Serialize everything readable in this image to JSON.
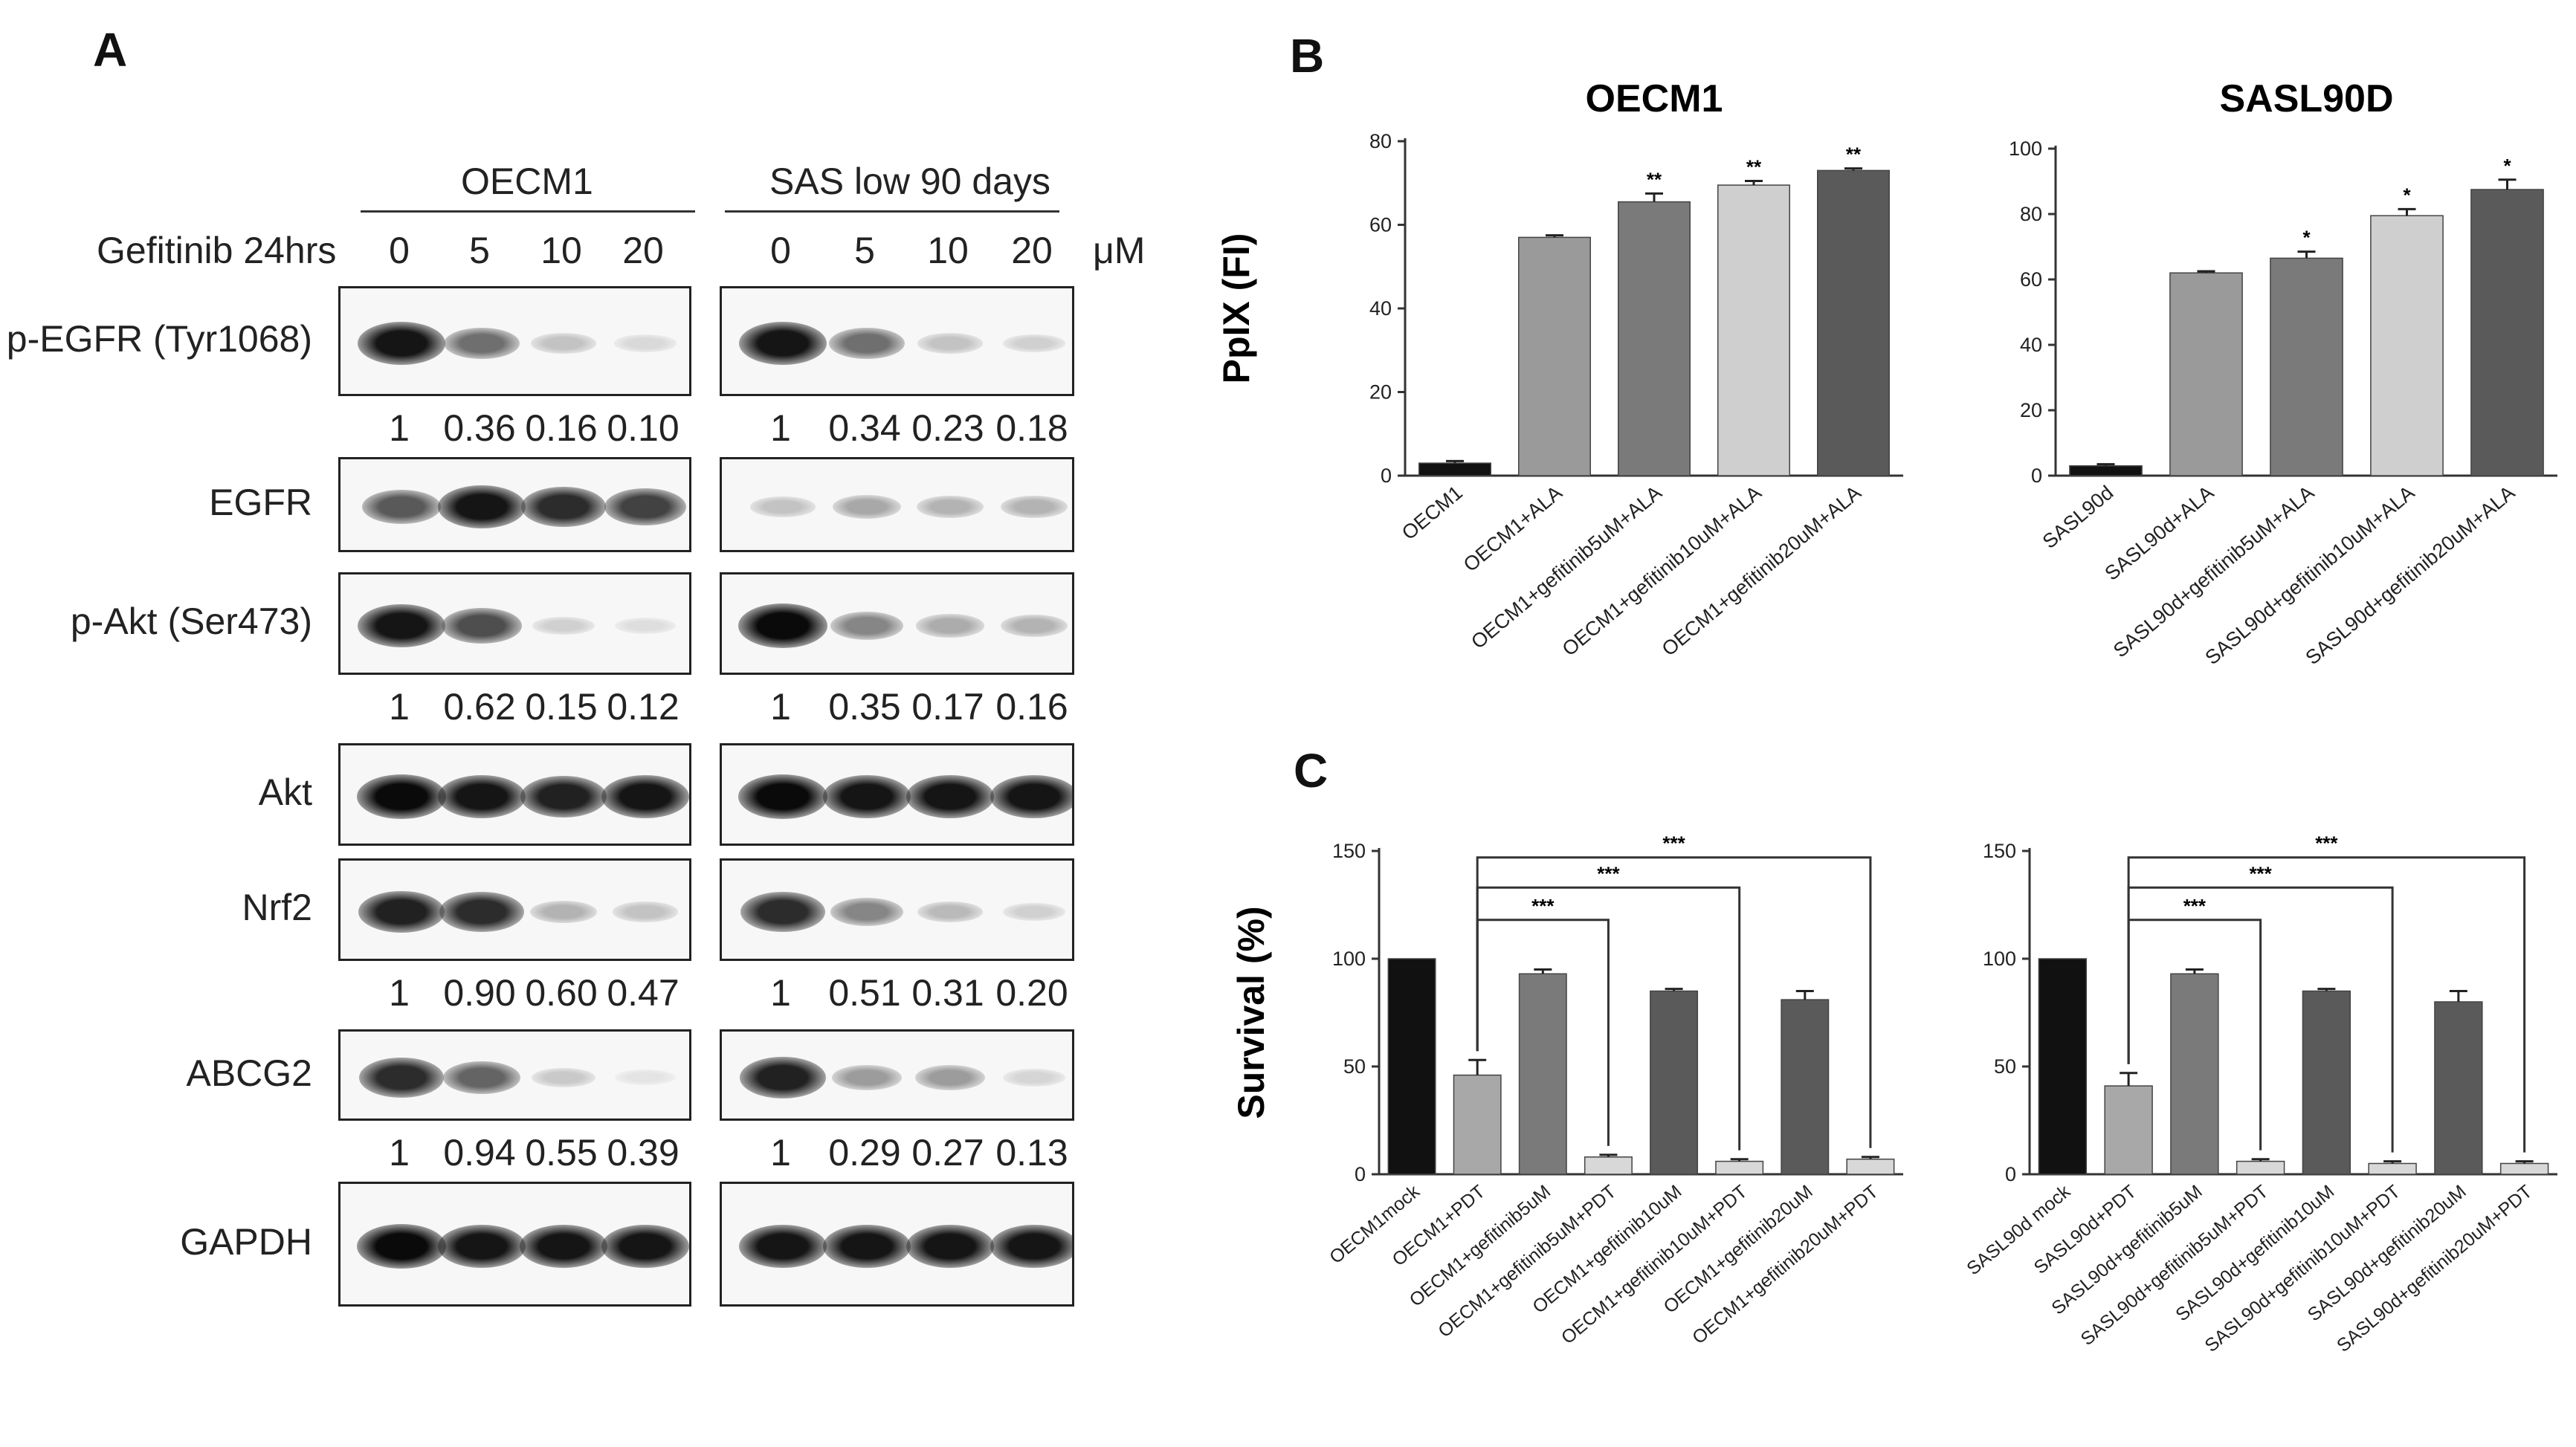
{
  "panels": {
    "A": "A",
    "B": "B",
    "C": "C"
  },
  "blot": {
    "group_left": "OECM1",
    "group_right": "SAS low 90 days",
    "treatment_label": "Gefitinib 24hrs",
    "unit": "μM",
    "lanes": [
      "0",
      "5",
      "10",
      "20"
    ],
    "rows": [
      {
        "label": "p-EGFR (Tyr1068)",
        "left_quant": [
          "1",
          "0.36",
          "0.16",
          "0.10"
        ],
        "right_quant": [
          "1",
          "0.34",
          "0.23",
          "0.18"
        ],
        "left_intensity": [
          0.95,
          0.55,
          0.18,
          0.08
        ],
        "right_intensity": [
          0.95,
          0.55,
          0.18,
          0.12
        ]
      },
      {
        "label": "EGFR",
        "left_quant": [],
        "right_quant": [],
        "left_intensity": [
          0.65,
          0.95,
          0.85,
          0.75
        ],
        "right_intensity": [
          0.18,
          0.3,
          0.25,
          0.25
        ]
      },
      {
        "label": "p-Akt (Ser473)",
        "left_quant": [
          "1",
          "0.62",
          "0.15",
          "0.12"
        ],
        "right_quant": [
          "1",
          "0.35",
          "0.17",
          "0.16"
        ],
        "left_intensity": [
          0.95,
          0.7,
          0.12,
          0.06
        ],
        "right_intensity": [
          1.0,
          0.45,
          0.28,
          0.25
        ]
      },
      {
        "label": "Akt",
        "left_quant": [],
        "right_quant": [],
        "left_intensity": [
          1.0,
          0.95,
          0.9,
          0.95
        ],
        "right_intensity": [
          1.0,
          0.95,
          0.95,
          0.95
        ]
      },
      {
        "label": "Nrf2",
        "left_quant": [
          "1",
          "0.90",
          "0.60",
          "0.47"
        ],
        "right_quant": [
          "1",
          "0.51",
          "0.31",
          "0.20"
        ],
        "left_intensity": [
          0.9,
          0.85,
          0.25,
          0.18
        ],
        "right_intensity": [
          0.85,
          0.45,
          0.22,
          0.12
        ]
      },
      {
        "label": "ABCG2",
        "left_quant": [
          "1",
          "0.94",
          "0.55",
          "0.39"
        ],
        "right_quant": [
          "1",
          "0.29",
          "0.27",
          "0.13"
        ],
        "left_intensity": [
          0.85,
          0.6,
          0.15,
          0.03
        ],
        "right_intensity": [
          0.9,
          0.35,
          0.35,
          0.1
        ]
      },
      {
        "label": "GAPDH",
        "left_quant": [],
        "right_quant": [],
        "left_intensity": [
          1.0,
          0.95,
          0.95,
          0.95
        ],
        "right_intensity": [
          0.95,
          0.95,
          0.95,
          0.95
        ]
      }
    ]
  },
  "chart_data": [
    {
      "id": "B-left",
      "type": "bar",
      "title": "OECM1",
      "ylabel": "PpIX (FI)",
      "xlabel": "",
      "ylim": [
        0,
        80
      ],
      "yticks": [
        0,
        20,
        40,
        60,
        80
      ],
      "categories": [
        "OECM1",
        "OECM1+ALA",
        "OECM1+gefitinib5uM+ALA",
        "OECM1+gefitinib10uM+ALA",
        "OECM1+gefitinib20uM+ALA"
      ],
      "values": [
        3,
        57,
        65.5,
        69.5,
        73
      ],
      "errors": [
        0.5,
        0.5,
        2,
        1,
        0.5
      ],
      "annotations": [
        "",
        "",
        "**",
        "**",
        "**"
      ],
      "colors": [
        "#111111",
        "#9a9a9a",
        "#7a7a7a",
        "#cfcfcf",
        "#5a5a5a"
      ]
    },
    {
      "id": "B-right",
      "type": "bar",
      "title": "SASL90D",
      "ylabel": "",
      "xlabel": "",
      "ylim": [
        0,
        100
      ],
      "yticks": [
        0,
        20,
        40,
        60,
        80,
        100
      ],
      "categories": [
        "SASL90d",
        "SASL90d+ALA",
        "SASL90d+gefitinib5uM+ALA",
        "SASL90d+gefitinib10uM+ALA",
        "SASL90d+gefitinib20uM+ALA"
      ],
      "values": [
        3,
        62,
        66.5,
        79.5,
        87.5
      ],
      "errors": [
        0.5,
        0.5,
        2,
        2,
        3
      ],
      "annotations": [
        "",
        "",
        "*",
        "*",
        "*"
      ],
      "colors": [
        "#111111",
        "#9a9a9a",
        "#7a7a7a",
        "#cfcfcf",
        "#5a5a5a"
      ]
    },
    {
      "id": "C-left",
      "type": "bar",
      "title": "",
      "ylabel": "Survival (%)",
      "xlabel": "",
      "ylim": [
        0,
        150
      ],
      "yticks": [
        0,
        50,
        100,
        150
      ],
      "categories": [
        "OECM1mock",
        "OECM1+PDT",
        "OECM1+gefitinib5uM",
        "OECM1+gefitinib5uM+PDT",
        "OECM1+gefitinib10uM",
        "OECM1+gefitinib10uM+PDT",
        "OECM1+gefitinib20uM",
        "OECM1+gefitinib20uM+PDT"
      ],
      "values": [
        100,
        46,
        93,
        8,
        85,
        6,
        81,
        7
      ],
      "errors": [
        0,
        7,
        2,
        1,
        1,
        1,
        4,
        1
      ],
      "colors": [
        "#111111",
        "#a8a8a8",
        "#7a7a7a",
        "#d8d8d8",
        "#5a5a5a",
        "#d8d8d8",
        "#5a5a5a",
        "#d8d8d8"
      ],
      "brackets": [
        {
          "from": 1,
          "to": 3,
          "label": "***",
          "level": 118
        },
        {
          "from": 1,
          "to": 5,
          "label": "***",
          "level": 133
        },
        {
          "from": 1,
          "to": 7,
          "label": "***",
          "level": 147
        }
      ]
    },
    {
      "id": "C-right",
      "type": "bar",
      "title": "",
      "ylabel": "",
      "xlabel": "",
      "ylim": [
        0,
        150
      ],
      "yticks": [
        0,
        50,
        100,
        150
      ],
      "categories": [
        "SASL90d mock",
        "SASL90d+PDT",
        "SASL90d+gefitinib5uM",
        "SASL90d+gefitinib5uM+PDT",
        "SASL90d+gefitinib10uM",
        "SASL90d+gefitinib10uM+PDT",
        "SASL90d+gefitinib20uM",
        "SASL90d+gefitinib20uM+PDT"
      ],
      "values": [
        100,
        41,
        93,
        6,
        85,
        5,
        80,
        5
      ],
      "errors": [
        0,
        6,
        2,
        1,
        1,
        1,
        5,
        1
      ],
      "colors": [
        "#111111",
        "#a8a8a8",
        "#7a7a7a",
        "#d8d8d8",
        "#5a5a5a",
        "#d8d8d8",
        "#5a5a5a",
        "#d8d8d8"
      ],
      "brackets": [
        {
          "from": 1,
          "to": 3,
          "label": "***",
          "level": 118
        },
        {
          "from": 1,
          "to": 5,
          "label": "***",
          "level": 133
        },
        {
          "from": 1,
          "to": 7,
          "label": "***",
          "level": 147
        }
      ]
    }
  ]
}
